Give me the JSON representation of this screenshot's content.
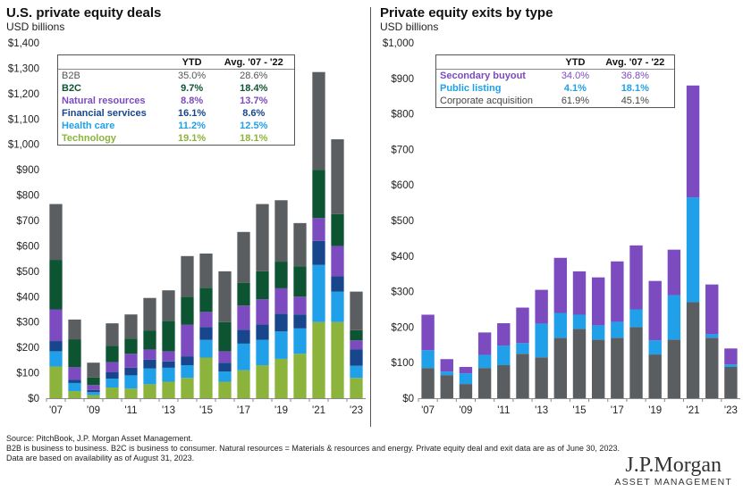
{
  "chart_data": [
    {
      "type": "bar",
      "stacked": true,
      "title": "U.S. private equity deals",
      "subtitle": "USD billions",
      "ylim": [
        0,
        1400
      ],
      "ytick_step": 100,
      "ytick_labels": [
        "$0",
        "$100",
        "$200",
        "$300",
        "$400",
        "$500",
        "$600",
        "$700",
        "$800",
        "$900",
        "$1,000",
        "$1,100",
        "$1,200",
        "$1,300",
        "$1,400"
      ],
      "categories": [
        "2007",
        "2008",
        "2009",
        "2010",
        "2011",
        "2012",
        "2013",
        "2014",
        "2015",
        "2016",
        "2017",
        "2018",
        "2019",
        "2020",
        "2021",
        "2022",
        "2023"
      ],
      "xtick_labels": [
        "'07",
        "",
        "'09",
        "",
        "'11",
        "",
        "'13",
        "",
        "'15",
        "",
        "'17",
        "",
        "'19",
        "",
        "'21",
        "",
        "'23"
      ],
      "series": [
        {
          "name": "Technology",
          "color": "#8cb43c",
          "values": [
            125,
            28,
            12,
            42,
            38,
            55,
            65,
            80,
            160,
            65,
            110,
            130,
            155,
            175,
            300,
            300,
            80
          ]
        },
        {
          "name": "Health care",
          "color": "#1fa0e8",
          "values": [
            60,
            32,
            12,
            35,
            52,
            62,
            55,
            50,
            70,
            40,
            105,
            100,
            108,
            100,
            225,
            120,
            48
          ]
        },
        {
          "name": "Financial services",
          "color": "#17468c",
          "values": [
            40,
            12,
            8,
            25,
            30,
            35,
            25,
            35,
            50,
            35,
            55,
            60,
            70,
            55,
            95,
            60,
            65
          ]
        },
        {
          "name": "Natural resources",
          "color": "#7b4bbf",
          "values": [
            125,
            50,
            20,
            40,
            55,
            40,
            40,
            125,
            60,
            45,
            95,
            100,
            100,
            70,
            90,
            120,
            35
          ]
        },
        {
          "name": "B2C",
          "color": "#0d5532",
          "values": [
            195,
            110,
            30,
            65,
            60,
            75,
            120,
            110,
            95,
            115,
            90,
            110,
            105,
            120,
            190,
            125,
            40
          ]
        },
        {
          "name": "B2B",
          "color": "#5a5e61",
          "values": [
            220,
            78,
            58,
            88,
            95,
            128,
            120,
            160,
            135,
            200,
            200,
            265,
            242,
            170,
            385,
            295,
            152
          ]
        }
      ],
      "legend_table": {
        "headers": [
          "",
          "YTD",
          "Avg. '07 - '22"
        ],
        "rows": [
          {
            "label": "B2B",
            "ytd": "35.0%",
            "avg": "28.6%",
            "color": "#555555"
          },
          {
            "label": "B2C",
            "ytd": "9.7%",
            "avg": "18.4%",
            "color": "#0d5532"
          },
          {
            "label": "Natural resources",
            "ytd": "8.8%",
            "avg": "13.7%",
            "color": "#7b4bbf"
          },
          {
            "label": "Financial services",
            "ytd": "16.1%",
            "avg": "8.6%",
            "color": "#17468c"
          },
          {
            "label": "Health care",
            "ytd": "11.2%",
            "avg": "12.5%",
            "color": "#1fa0e8"
          },
          {
            "label": "Technology",
            "ytd": "19.1%",
            "avg": "18.1%",
            "color": "#8cb43c"
          }
        ]
      }
    },
    {
      "type": "bar",
      "stacked": true,
      "title": "Private equity exits by type",
      "subtitle": "USD billions",
      "ylim": [
        0,
        1000
      ],
      "ytick_step": 100,
      "ytick_labels": [
        "$0",
        "$100",
        "$200",
        "$300",
        "$400",
        "$500",
        "$600",
        "$700",
        "$800",
        "$900",
        "$1,000"
      ],
      "categories": [
        "2007",
        "2008",
        "2009",
        "2010",
        "2011",
        "2012",
        "2013",
        "2014",
        "2015",
        "2016",
        "2017",
        "2018",
        "2019",
        "2020",
        "2021",
        "2022",
        "2023"
      ],
      "xtick_labels": [
        "'07",
        "",
        "'09",
        "",
        "'11",
        "",
        "'13",
        "",
        "'15",
        "",
        "'17",
        "",
        "'19",
        "",
        "'21",
        "",
        "'23"
      ],
      "series": [
        {
          "name": "Corporate acquisition",
          "color": "#5a5e61",
          "values": [
            85,
            65,
            40,
            85,
            93,
            125,
            115,
            170,
            195,
            165,
            170,
            200,
            123,
            165,
            270,
            170,
            88
          ]
        },
        {
          "name": "Public listing",
          "color": "#1fa0e8",
          "values": [
            50,
            10,
            30,
            37,
            55,
            30,
            95,
            70,
            40,
            40,
            45,
            50,
            40,
            125,
            295,
            10,
            7
          ]
        },
        {
          "name": "Secondary buyout",
          "color": "#7b4bbf",
          "values": [
            100,
            35,
            18,
            63,
            63,
            100,
            95,
            155,
            122,
            135,
            170,
            180,
            167,
            128,
            315,
            140,
            45
          ]
        }
      ],
      "legend_table": {
        "headers": [
          "",
          "YTD",
          "Avg. '07 - '22"
        ],
        "rows": [
          {
            "label": "Secondary buyout",
            "ytd": "34.0%",
            "avg": "36.8%",
            "color": "#7b4bbf"
          },
          {
            "label": "Public listing",
            "ytd": "4.1%",
            "avg": "18.1%",
            "color": "#1fa0e8"
          },
          {
            "label": "Corporate acquisition",
            "ytd": "61.9%",
            "avg": "45.1%",
            "color": "#444444"
          }
        ]
      }
    }
  ],
  "footnotes": [
    "Source: PitchBook, J.P. Morgan Asset Management.",
    "B2B is business to business. B2C is business to consumer. Natural resources = Materials & resources and energy. Private equity deal and exit data are as of June 30, 2023.",
    "Data are based on availability as of August 31, 2023."
  ],
  "logo": {
    "main": "J.P.Morgan",
    "sub": "ASSET MANAGEMENT"
  }
}
